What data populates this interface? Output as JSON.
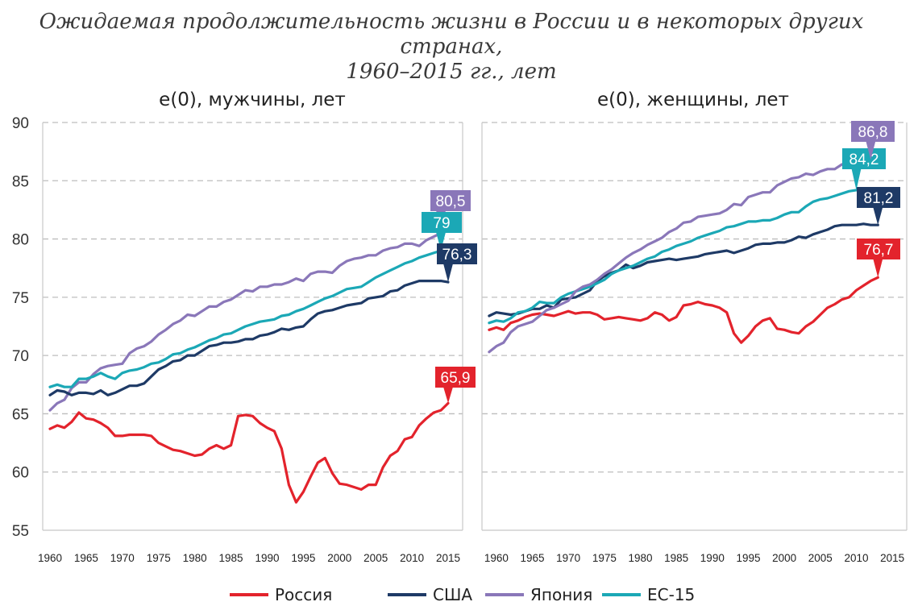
{
  "title": {
    "line1": "Ожидаемая продолжительность жизни в России и в некоторых других странах,",
    "line2": "1960–2015 гг., лет"
  },
  "legend": [
    {
      "name": "Россия",
      "color": "#e3232c"
    },
    {
      "name": "США",
      "color": "#1e3a66"
    },
    {
      "name": "Япония",
      "color": "#8a77b9"
    },
    {
      "name": "ЕС-15",
      "color": "#1ba8b6"
    }
  ],
  "chart_data": [
    {
      "type": "line",
      "title": "e(0), мужчины, лет",
      "ylim": [
        55,
        90
      ],
      "yticks": [
        55,
        60,
        65,
        70,
        75,
        80,
        85,
        90
      ],
      "xlim": [
        1959,
        2017
      ],
      "xticks": [
        1960,
        1965,
        1970,
        1975,
        1980,
        1985,
        1990,
        1995,
        2000,
        2005,
        2010,
        2015
      ],
      "grid": true,
      "legend": "bottom",
      "series": [
        {
          "name": "Япония",
          "color": "#8a77b9",
          "start": 1960,
          "label": "80,5",
          "values": [
            65.3,
            65.9,
            66.2,
            67.2,
            67.7,
            67.7,
            68.4,
            68.9,
            69.1,
            69.2,
            69.3,
            70.2,
            70.6,
            70.8,
            71.2,
            71.8,
            72.2,
            72.7,
            73.0,
            73.5,
            73.4,
            73.8,
            74.2,
            74.2,
            74.6,
            74.8,
            75.2,
            75.6,
            75.5,
            75.9,
            75.9,
            76.1,
            76.1,
            76.3,
            76.6,
            76.4,
            77.0,
            77.2,
            77.2,
            77.1,
            77.7,
            78.1,
            78.3,
            78.4,
            78.6,
            78.6,
            79.0,
            79.2,
            79.3,
            79.6,
            79.6,
            79.4,
            79.9,
            80.2,
            80.5
          ]
        },
        {
          "name": "ЕС-15",
          "color": "#1ba8b6",
          "start": 1960,
          "label": "79",
          "values": [
            67.3,
            67.5,
            67.3,
            67.3,
            68.0,
            68.0,
            68.2,
            68.5,
            68.2,
            68.0,
            68.5,
            68.7,
            68.8,
            69.0,
            69.3,
            69.4,
            69.7,
            70.1,
            70.2,
            70.5,
            70.7,
            71.0,
            71.3,
            71.5,
            71.8,
            71.9,
            72.2,
            72.5,
            72.7,
            72.9,
            73.0,
            73.1,
            73.4,
            73.5,
            73.8,
            74.0,
            74.3,
            74.6,
            74.9,
            75.1,
            75.4,
            75.7,
            75.8,
            75.9,
            76.3,
            76.7,
            77.0,
            77.3,
            77.6,
            77.9,
            78.1,
            78.4,
            78.6,
            78.8,
            79.0
          ]
        },
        {
          "name": "США",
          "color": "#1e3a66",
          "start": 1960,
          "label": "76,3",
          "values": [
            66.6,
            67.0,
            66.9,
            66.6,
            66.8,
            66.8,
            66.7,
            67.0,
            66.6,
            66.8,
            67.1,
            67.4,
            67.4,
            67.6,
            68.2,
            68.8,
            69.1,
            69.5,
            69.6,
            70.0,
            70.0,
            70.4,
            70.8,
            70.9,
            71.1,
            71.1,
            71.2,
            71.4,
            71.4,
            71.7,
            71.8,
            72.0,
            72.3,
            72.2,
            72.4,
            72.5,
            73.1,
            73.6,
            73.8,
            73.9,
            74.1,
            74.3,
            74.4,
            74.5,
            74.9,
            75.0,
            75.1,
            75.5,
            75.6,
            76.0,
            76.2,
            76.4,
            76.4,
            76.4,
            76.4,
            76.3
          ]
        },
        {
          "name": "Россия",
          "color": "#e3232c",
          "start": 1960,
          "label": "65,9",
          "values": [
            63.7,
            64.0,
            63.8,
            64.3,
            65.1,
            64.6,
            64.5,
            64.2,
            63.8,
            63.1,
            63.1,
            63.2,
            63.2,
            63.2,
            63.1,
            62.5,
            62.2,
            61.9,
            61.8,
            61.6,
            61.4,
            61.5,
            62.0,
            62.3,
            62.0,
            62.3,
            64.8,
            64.9,
            64.8,
            64.2,
            63.8,
            63.5,
            62.0,
            58.9,
            57.4,
            58.3,
            59.6,
            60.8,
            61.2,
            59.9,
            59.0,
            58.9,
            58.7,
            58.5,
            58.9,
            58.9,
            60.4,
            61.4,
            61.8,
            62.8,
            63.0,
            64.0,
            64.6,
            65.1,
            65.3,
            65.9
          ]
        }
      ]
    },
    {
      "type": "line",
      "title": "e(0), женщины, лет",
      "ylim": [
        55,
        90
      ],
      "yticks": [
        55,
        60,
        65,
        70,
        75,
        80,
        85,
        90
      ],
      "xlim": [
        1958,
        2017
      ],
      "xticks": [
        1960,
        1965,
        1970,
        1975,
        1980,
        1985,
        1990,
        1995,
        2000,
        2005,
        2010,
        2015
      ],
      "grid": true,
      "legend": "bottom",
      "series": [
        {
          "name": "Россия",
          "color": "#e3232c",
          "start": 1959,
          "label": "76,7",
          "values": [
            72.2,
            72.4,
            72.2,
            72.8,
            73.0,
            73.3,
            73.5,
            73.6,
            73.5,
            73.4,
            73.6,
            73.8,
            73.6,
            73.7,
            73.7,
            73.5,
            73.1,
            73.2,
            73.3,
            73.2,
            73.1,
            73.0,
            73.2,
            73.7,
            73.5,
            73.0,
            73.3,
            74.3,
            74.4,
            74.6,
            74.4,
            74.3,
            74.1,
            73.7,
            71.9,
            71.1,
            71.7,
            72.5,
            73.0,
            73.2,
            72.3,
            72.2,
            72.0,
            71.9,
            72.5,
            72.9,
            73.5,
            74.1,
            74.4,
            74.8,
            75.0,
            75.6,
            76.0,
            76.4,
            76.7
          ]
        },
        {
          "name": "США",
          "color": "#1e3a66",
          "start": 1959,
          "label": "81,2",
          "values": [
            73.4,
            73.7,
            73.6,
            73.5,
            73.6,
            73.8,
            74.0,
            74.0,
            74.3,
            74.1,
            74.8,
            74.9,
            75.0,
            75.3,
            75.6,
            76.4,
            76.8,
            77.1,
            77.3,
            77.8,
            77.5,
            77.7,
            78.0,
            78.1,
            78.2,
            78.3,
            78.2,
            78.3,
            78.4,
            78.5,
            78.7,
            78.8,
            78.9,
            79.0,
            78.8,
            79.0,
            79.2,
            79.5,
            79.6,
            79.6,
            79.7,
            79.7,
            79.9,
            80.2,
            80.1,
            80.4,
            80.6,
            80.8,
            81.1,
            81.2,
            81.2,
            81.2,
            81.3,
            81.2,
            81.2
          ]
        },
        {
          "name": "ЕС-15",
          "color": "#1ba8b6",
          "start": 1959,
          "label": "84,2",
          "values": [
            72.8,
            73.0,
            72.9,
            73.2,
            73.7,
            73.8,
            74.1,
            74.6,
            74.5,
            74.5,
            75.0,
            75.3,
            75.5,
            75.7,
            75.9,
            76.2,
            76.5,
            77.0,
            77.3,
            77.5,
            77.7,
            78.0,
            78.3,
            78.5,
            78.9,
            79.1,
            79.4,
            79.6,
            79.8,
            80.1,
            80.3,
            80.5,
            80.7,
            81.0,
            81.1,
            81.3,
            81.5,
            81.5,
            81.6,
            81.6,
            81.8,
            82.1,
            82.3,
            82.3,
            82.8,
            83.2,
            83.4,
            83.5,
            83.7,
            83.9,
            84.1,
            84.2
          ]
        },
        {
          "name": "Япония",
          "color": "#8a77b9",
          "start": 1959,
          "label": "86,8",
          "values": [
            70.3,
            70.8,
            71.1,
            72.0,
            72.5,
            72.7,
            72.9,
            73.4,
            73.9,
            74.1,
            74.4,
            74.7,
            75.5,
            75.9,
            76.1,
            76.5,
            77.0,
            77.4,
            77.9,
            78.4,
            78.8,
            79.1,
            79.5,
            79.8,
            80.1,
            80.6,
            80.9,
            81.4,
            81.5,
            81.9,
            82.0,
            82.1,
            82.2,
            82.5,
            83.0,
            82.9,
            83.6,
            83.8,
            84.0,
            84.0,
            84.6,
            84.9,
            85.2,
            85.3,
            85.6,
            85.5,
            85.8,
            86.0,
            86.0,
            86.4,
            86.4,
            86.3,
            86.6,
            86.8
          ]
        }
      ]
    }
  ]
}
